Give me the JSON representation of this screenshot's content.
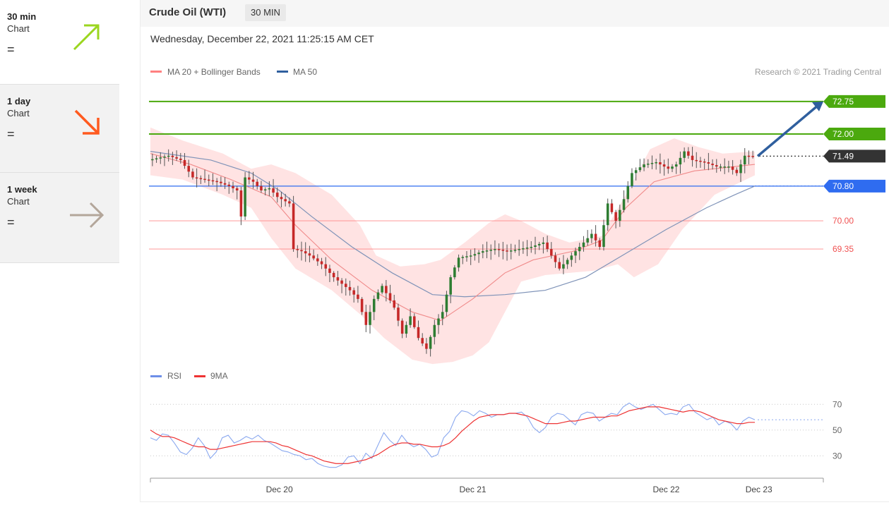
{
  "sidebar": {
    "cards": [
      {
        "title": "30 min",
        "subtitle": "Chart",
        "opinion": "=",
        "arrow": "up-right-arrow-icon",
        "color": "#9bd61f"
      },
      {
        "title": "1 day",
        "subtitle": "Chart",
        "opinion": "=",
        "arrow": "down-right-arrow-icon",
        "color": "#ff5a1f"
      },
      {
        "title": "1 week",
        "subtitle": "Chart",
        "opinion": "=",
        "arrow": "right-arrow-icon",
        "color": "#b3a69a"
      }
    ]
  },
  "header": {
    "instrument": "Crude Oil (WTI)",
    "timeframe": "30 MIN",
    "timestamp": "Wednesday, December 22, 2021 11:25:15 AM CET"
  },
  "legend": {
    "ma20_label": "MA 20 + Bollinger Bands",
    "ma50_label": "MA 50",
    "copyright": "Research © 2021 Trading Central",
    "rsi_label": "RSI",
    "rsi_ma_label": "9MA"
  },
  "colors": {
    "green": "#4ba90e",
    "blue": "#2f6cf0",
    "red": "#ff8080",
    "dark": "#333333",
    "candle_up": "#2e7d32",
    "candle_down": "#c62828",
    "band_fill": "#ffdede",
    "ma20": "#f08a8a",
    "ma50": "#7f93b8",
    "rsi": "#8aa8ef",
    "rsi_ma": "#ee3333",
    "forecast_arrow": "#2f5f9e"
  },
  "chart_data": [
    {
      "type": "candlestick",
      "title": "Crude Oil (WTI)",
      "timeframe": "30 MIN",
      "x_ticks": [
        "Dec 20",
        "Dec 21",
        "Dec 22",
        "Dec 23"
      ],
      "ylim": [
        66.8,
        73.3
      ],
      "current_price": 71.49,
      "levels": [
        {
          "value": 72.75,
          "label": "72.75",
          "kind": "target",
          "color": "#4ba90e"
        },
        {
          "value": 72.0,
          "label": "72.00",
          "kind": "resistance",
          "color": "#4ba90e"
        },
        {
          "value": 71.49,
          "label": "71.49",
          "kind": "last",
          "color": "#333333"
        },
        {
          "value": 70.8,
          "label": "70.80",
          "kind": "pivot",
          "color": "#2f6cf0"
        },
        {
          "value": 70.0,
          "label": "70.00",
          "kind": "support",
          "color": "#ff8080"
        },
        {
          "value": 69.35,
          "label": "69.35",
          "kind": "support",
          "color": "#ff8080"
        }
      ],
      "price_path": [
        [
          0,
          71.4
        ],
        [
          5,
          71.5
        ],
        [
          8,
          71.4
        ],
        [
          11,
          71.0
        ],
        [
          14,
          70.95
        ],
        [
          17,
          70.9
        ],
        [
          20,
          70.8
        ],
        [
          22,
          70.7
        ],
        [
          23,
          70.1
        ],
        [
          24,
          71.0
        ],
        [
          26,
          70.9
        ],
        [
          28,
          70.7
        ],
        [
          30,
          70.75
        ],
        [
          32,
          70.55
        ],
        [
          35,
          70.4
        ],
        [
          36,
          69.35
        ],
        [
          38,
          69.3
        ],
        [
          40,
          69.2
        ],
        [
          43,
          69.0
        ],
        [
          46,
          68.7
        ],
        [
          50,
          68.4
        ],
        [
          52,
          68.2
        ],
        [
          54,
          67.6
        ],
        [
          56,
          68.2
        ],
        [
          58,
          68.5
        ],
        [
          61,
          68.0
        ],
        [
          63,
          67.4
        ],
        [
          65,
          67.8
        ],
        [
          67,
          67.3
        ],
        [
          69,
          67.05
        ],
        [
          71,
          67.6
        ],
        [
          73,
          67.9
        ],
        [
          75,
          68.7
        ],
        [
          77,
          69.15
        ],
        [
          80,
          69.2
        ],
        [
          83,
          69.3
        ],
        [
          86,
          69.35
        ],
        [
          89,
          69.3
        ],
        [
          92,
          69.35
        ],
        [
          95,
          69.4
        ],
        [
          98,
          69.5
        ],
        [
          100,
          69.2
        ],
        [
          102,
          68.9
        ],
        [
          104,
          69.1
        ],
        [
          106,
          69.3
        ],
        [
          108,
          69.5
        ],
        [
          110,
          69.7
        ],
        [
          112,
          69.4
        ],
        [
          114,
          70.4
        ],
        [
          116,
          70.0
        ],
        [
          118,
          70.5
        ],
        [
          120,
          71.1
        ],
        [
          123,
          71.3
        ],
        [
          126,
          71.35
        ],
        [
          129,
          71.2
        ],
        [
          131,
          71.3
        ],
        [
          133,
          71.6
        ],
        [
          135,
          71.4
        ],
        [
          138,
          71.35
        ],
        [
          141,
          71.25
        ],
        [
          144,
          71.25
        ],
        [
          146,
          71.1
        ],
        [
          148,
          71.5
        ],
        [
          150,
          71.49
        ]
      ],
      "ma20": [
        [
          0,
          71.55
        ],
        [
          10,
          71.3
        ],
        [
          20,
          70.95
        ],
        [
          30,
          70.55
        ],
        [
          36,
          69.9
        ],
        [
          45,
          69.1
        ],
        [
          55,
          68.4
        ],
        [
          65,
          67.9
        ],
        [
          72,
          67.7
        ],
        [
          80,
          68.2
        ],
        [
          88,
          68.8
        ],
        [
          95,
          69.1
        ],
        [
          105,
          69.3
        ],
        [
          112,
          69.55
        ],
        [
          118,
          70.3
        ],
        [
          125,
          70.9
        ],
        [
          135,
          71.15
        ],
        [
          145,
          71.25
        ],
        [
          150,
          71.3
        ]
      ],
      "ma50": [
        [
          0,
          71.6
        ],
        [
          15,
          71.4
        ],
        [
          25,
          71.1
        ],
        [
          32,
          70.7
        ],
        [
          40,
          70.1
        ],
        [
          50,
          69.4
        ],
        [
          60,
          68.8
        ],
        [
          70,
          68.3
        ],
        [
          78,
          68.25
        ],
        [
          88,
          68.3
        ],
        [
          98,
          68.4
        ],
        [
          108,
          68.7
        ],
        [
          118,
          69.25
        ],
        [
          128,
          69.8
        ],
        [
          138,
          70.3
        ],
        [
          145,
          70.6
        ],
        [
          150,
          70.8
        ]
      ],
      "bb_upper": [
        [
          0,
          72.15
        ],
        [
          8,
          71.85
        ],
        [
          18,
          71.55
        ],
        [
          25,
          71.2
        ],
        [
          30,
          71.3
        ],
        [
          36,
          71.1
        ],
        [
          45,
          70.6
        ],
        [
          52,
          69.9
        ],
        [
          56,
          69.2
        ],
        [
          62,
          68.95
        ],
        [
          68,
          69.0
        ],
        [
          72,
          69.1
        ],
        [
          78,
          69.5
        ],
        [
          84,
          69.95
        ],
        [
          88,
          70.15
        ],
        [
          92,
          70.0
        ],
        [
          98,
          69.7
        ],
        [
          104,
          69.5
        ],
        [
          112,
          69.65
        ],
        [
          118,
          70.6
        ],
        [
          124,
          71.65
        ],
        [
          130,
          71.9
        ],
        [
          136,
          71.7
        ],
        [
          142,
          71.55
        ],
        [
          150,
          71.6
        ]
      ],
      "bb_lower": [
        [
          0,
          71.05
        ],
        [
          8,
          70.95
        ],
        [
          18,
          70.6
        ],
        [
          25,
          70.3
        ],
        [
          30,
          69.6
        ],
        [
          36,
          68.9
        ],
        [
          45,
          68.4
        ],
        [
          52,
          67.85
        ],
        [
          58,
          67.3
        ],
        [
          65,
          66.8
        ],
        [
          70,
          66.7
        ],
        [
          75,
          66.75
        ],
        [
          80,
          66.9
        ],
        [
          84,
          67.2
        ],
        [
          88,
          67.9
        ],
        [
          92,
          68.6
        ],
        [
          98,
          68.75
        ],
        [
          104,
          68.8
        ],
        [
          110,
          68.85
        ],
        [
          116,
          69.0
        ],
        [
          120,
          68.7
        ],
        [
          126,
          69.0
        ],
        [
          132,
          69.8
        ],
        [
          140,
          70.6
        ],
        [
          150,
          71.05
        ]
      ],
      "forecast": {
        "from": 71.49,
        "to": 72.75
      }
    },
    {
      "type": "line",
      "title": "RSI",
      "series": [
        {
          "name": "RSI",
          "values": [
            44,
            42,
            47,
            46,
            40,
            33,
            31,
            36,
            44,
            38,
            28,
            33,
            44,
            46,
            40,
            42,
            45,
            43,
            46,
            42,
            40,
            37,
            34,
            33,
            31,
            30,
            27,
            28,
            24,
            22,
            21,
            21,
            23,
            29,
            30,
            24,
            32,
            28,
            38,
            48,
            42,
            38,
            46,
            40,
            37,
            39,
            35,
            29,
            31,
            44,
            49,
            60,
            65,
            64,
            61,
            65,
            63,
            60,
            62,
            62,
            63,
            63,
            64,
            60,
            52,
            48,
            52,
            60,
            63,
            62,
            58,
            54,
            62,
            64,
            63,
            57,
            60,
            63,
            62,
            68,
            71,
            68,
            66,
            68,
            70,
            66,
            62,
            63,
            62,
            68,
            70,
            64,
            61,
            58,
            60,
            54,
            57,
            55,
            50,
            57,
            60,
            58
          ]
        },
        {
          "name": "9MA",
          "values": [
            50,
            47,
            45,
            45,
            44,
            42,
            40,
            38,
            37,
            37,
            35,
            35,
            36,
            37,
            38,
            39,
            40,
            41,
            41,
            41,
            41,
            40,
            38,
            37,
            35,
            33,
            31,
            30,
            28,
            26,
            25,
            24,
            24,
            24,
            25,
            26,
            27,
            29,
            31,
            34,
            37,
            39,
            40,
            40,
            39,
            39,
            38,
            37,
            37,
            38,
            40,
            44,
            49,
            53,
            57,
            60,
            61,
            62,
            62,
            62,
            63,
            63,
            62,
            61,
            59,
            57,
            55,
            55,
            55,
            56,
            57,
            57,
            58,
            59,
            60,
            60,
            60,
            61,
            61,
            63,
            65,
            66,
            67,
            68,
            68,
            68,
            67,
            66,
            65,
            64,
            65,
            65,
            64,
            62,
            60,
            58,
            57,
            56,
            55,
            55,
            56,
            56
          ]
        }
      ],
      "yticks": [
        30,
        50,
        70
      ],
      "ylim": [
        17,
        80
      ]
    }
  ]
}
